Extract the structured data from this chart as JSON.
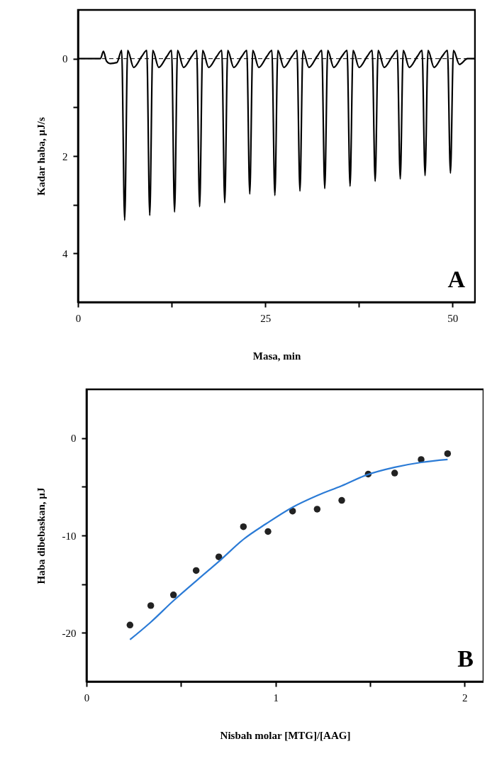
{
  "chart_data": [
    {
      "type": "line",
      "xlabel": "Masa, min",
      "ylabel": "Kadar haba, µJ/s",
      "xlim": [
        0,
        53
      ],
      "ylim": [
        5,
        -1
      ],
      "xticks": [
        0,
        {
          "value": 12.5,
          "label": null
        },
        25,
        {
          "value": 37.5,
          "label": null
        },
        50
      ],
      "yticks": [
        0,
        {
          "value": 1,
          "label": null
        },
        2,
        {
          "value": 3,
          "label": null
        },
        4
      ],
      "ref_lines": [
        {
          "axis": "y",
          "value": 0,
          "label": null,
          "color": "#000000",
          "line_style": "dashed"
        }
      ],
      "annotations": [
        "A"
      ],
      "series": [
        {
          "color": "#000000",
          "x": [
            0,
            3.0,
            3.4,
            3.8,
            4.3,
            5.2,
            5.83,
            6.23,
            6.63,
            7.43,
            8.53,
            9.18,
            9.58,
            9.98,
            10.78,
            11.88,
            12.49,
            12.89,
            13.29,
            14.09,
            15.19,
            15.84,
            16.24,
            16.64,
            17.44,
            18.54,
            19.19,
            19.59,
            19.99,
            20.79,
            21.89,
            22.53,
            22.93,
            23.33,
            24.13,
            25.23,
            25.88,
            26.28,
            26.68,
            27.48,
            28.58,
            29.23,
            29.63,
            30.03,
            30.83,
            31.93,
            32.54,
            32.94,
            33.34,
            34.14,
            35.24,
            35.92,
            36.32,
            36.72,
            37.52,
            38.62,
            39.27,
            39.67,
            40.07,
            40.87,
            41.97,
            42.62,
            43.02,
            43.42,
            44.22,
            45.32,
            45.93,
            46.33,
            46.73,
            47.53,
            48.63,
            49.32,
            49.72,
            50.12,
            50.92,
            52.0,
            53.0
          ],
          "values": [
            0,
            0,
            -0.15,
            0.05,
            0.1,
            0.08,
            -0.17,
            3.32,
            -0.17,
            0.18,
            -0.05,
            -0.17,
            3.22,
            -0.17,
            0.18,
            -0.05,
            -0.17,
            3.15,
            -0.17,
            0.18,
            -0.05,
            -0.17,
            3.04,
            -0.17,
            0.18,
            -0.05,
            -0.17,
            2.96,
            -0.17,
            0.18,
            -0.05,
            -0.17,
            2.78,
            -0.17,
            0.18,
            -0.05,
            -0.17,
            2.81,
            -0.17,
            0.18,
            -0.05,
            -0.17,
            2.72,
            -0.17,
            0.18,
            -0.05,
            -0.17,
            2.67,
            -0.17,
            0.18,
            -0.05,
            -0.17,
            2.62,
            -0.17,
            0.18,
            -0.05,
            -0.17,
            2.52,
            -0.17,
            0.18,
            -0.05,
            -0.17,
            2.47,
            -0.17,
            0.18,
            -0.05,
            -0.17,
            2.4,
            -0.17,
            0.18,
            -0.05,
            -0.17,
            2.35,
            -0.17,
            0.12,
            0,
            0
          ]
        }
      ]
    },
    {
      "type": "scatter",
      "xlabel": "Nisbah molar [MTG]/[AAG]",
      "ylabel": "Haba dibebaskan, µJ",
      "xlim": [
        0,
        2.1
      ],
      "ylim": [
        -25,
        5
      ],
      "xticks": [
        0,
        {
          "value": 0.5,
          "label": null
        },
        1,
        {
          "value": 1.5,
          "label": null
        },
        2
      ],
      "yticks": [
        {
          "value": -20,
          "label": "-20"
        },
        {
          "value": -15,
          "label": null
        },
        {
          "value": -10,
          "label": "-10"
        },
        {
          "value": -5,
          "label": null
        },
        0
      ],
      "annotations": [
        "B"
      ],
      "series": [
        {
          "marker": "circle",
          "color": "#222222",
          "x": [
            0.23,
            0.34,
            0.46,
            0.58,
            0.7,
            0.83,
            0.96,
            1.09,
            1.22,
            1.35,
            1.49,
            1.63,
            1.77,
            1.91
          ],
          "values": [
            -19.2,
            -17.2,
            -16.1,
            -13.6,
            -12.2,
            -9.1,
            -9.6,
            -7.5,
            -7.3,
            -6.4,
            -3.7,
            -3.6,
            -2.2,
            -1.6
          ]
        },
        {
          "type": "line",
          "color": "#2b7bd6",
          "x": [
            0.23,
            0.34,
            0.46,
            0.59,
            0.71,
            0.83,
            0.95,
            1.09,
            1.22,
            1.35,
            1.48,
            1.63,
            1.77,
            1.91
          ],
          "values": [
            -20.7,
            -18.9,
            -16.7,
            -14.5,
            -12.5,
            -10.4,
            -8.8,
            -7.1,
            -5.9,
            -4.9,
            -3.8,
            -3.0,
            -2.5,
            -2.2
          ]
        }
      ]
    }
  ]
}
